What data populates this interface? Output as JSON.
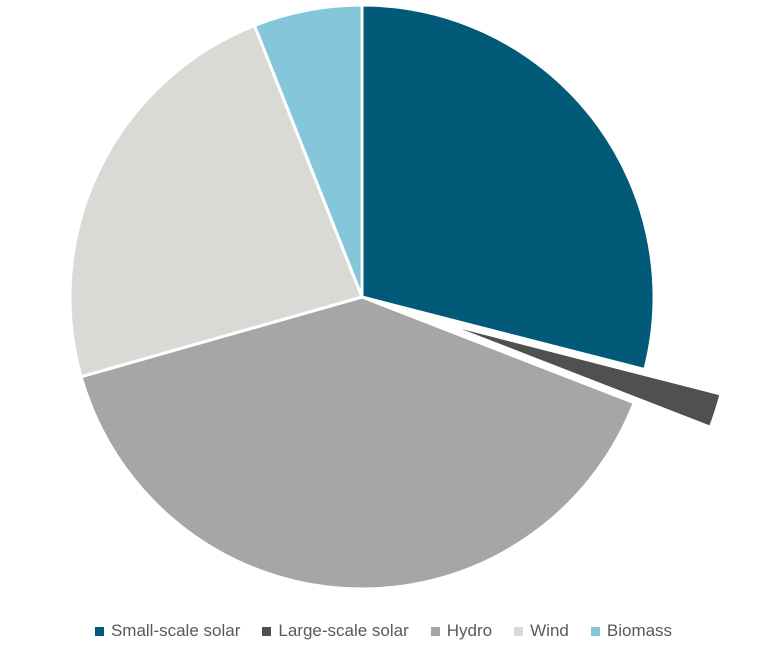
{
  "chart_data": {
    "type": "pie",
    "categories": [
      "Small-scale solar",
      "Large-scale solar",
      "Hydro",
      "Wind",
      "Biomass"
    ],
    "values": [
      29.0,
      1.9,
      39.7,
      23.4,
      6.0
    ],
    "colors": [
      "#005a78",
      "#505050",
      "#a6a6a6",
      "#d9d9d6",
      "#84c6da"
    ],
    "exploded": [
      "Large-scale solar"
    ],
    "start_angle_deg": 0,
    "direction": "clockwise",
    "legend_position": "bottom"
  }
}
